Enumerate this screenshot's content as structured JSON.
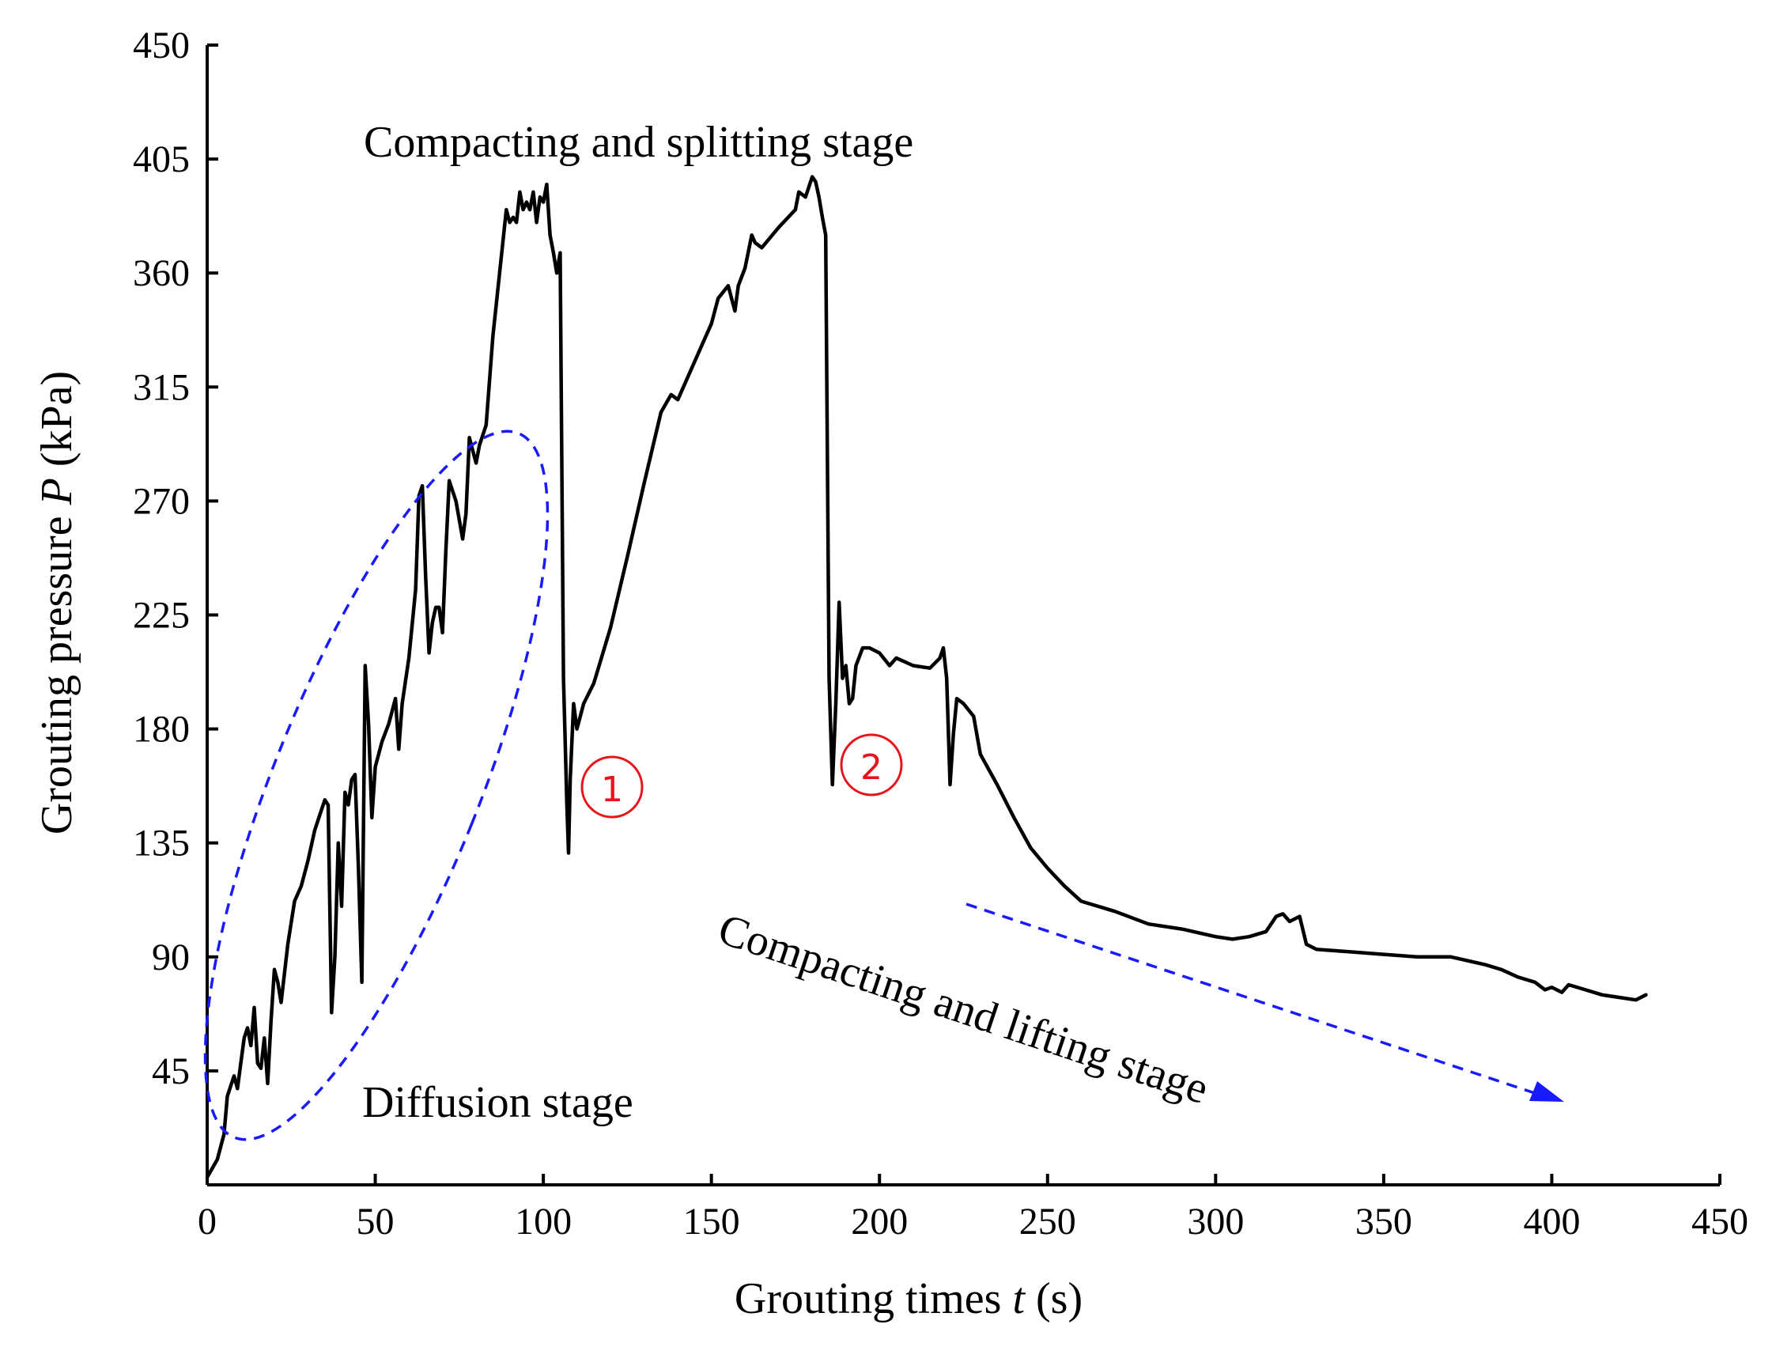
{
  "chart_data": {
    "type": "line",
    "xlabel": {
      "prefix": "Grouting times ",
      "var": "t",
      "suffix": " (s)"
    },
    "ylabel": {
      "prefix": "Grouting pressure ",
      "var": "P",
      "suffix": " (kPa)"
    },
    "xlim": [
      0,
      450
    ],
    "ylim": [
      0,
      450
    ],
    "xticks": [
      0,
      50,
      100,
      150,
      200,
      250,
      300,
      350,
      400,
      450
    ],
    "yticks": [
      45,
      90,
      135,
      180,
      225,
      270,
      315,
      360,
      405,
      450
    ],
    "grid": false,
    "colors": {
      "series": "#000000",
      "annotation": "#1a1aff",
      "marker": "#e8141b"
    },
    "series": [
      {
        "name": "Grouting pressure",
        "x": [
          0,
          3,
          5,
          6,
          8,
          9,
          10,
          11,
          12,
          13,
          14,
          15,
          16,
          17,
          18,
          19,
          20,
          21,
          22,
          24,
          26,
          28,
          30,
          32,
          34,
          35,
          36,
          37,
          38,
          39,
          40,
          41,
          42,
          43,
          44,
          45,
          46,
          47,
          48,
          49,
          50,
          52,
          54,
          56,
          57,
          58,
          60,
          62,
          63,
          64,
          65,
          66,
          67,
          68,
          69,
          70,
          71,
          72,
          74,
          76,
          77,
          78,
          79,
          80,
          81,
          83,
          85,
          87,
          89,
          90,
          91,
          92,
          93,
          94,
          95,
          96,
          97,
          98,
          99,
          100,
          101,
          102,
          103,
          104,
          105,
          106,
          107,
          107.5,
          108,
          109,
          110,
          111,
          112,
          115,
          120,
          125,
          130,
          135,
          138,
          140,
          145,
          150,
          152,
          155,
          157,
          158,
          160,
          162,
          163,
          165,
          170,
          175,
          176,
          178,
          180,
          181,
          182,
          183,
          184,
          185,
          186,
          187,
          188,
          189,
          190,
          191,
          192,
          193,
          195,
          197,
          200,
          203,
          205,
          210,
          215,
          218,
          219,
          220,
          221,
          222,
          223,
          225,
          228,
          230,
          235,
          240,
          245,
          250,
          255,
          260,
          270,
          280,
          290,
          300,
          305,
          310,
          315,
          318,
          320,
          322,
          325,
          327,
          330,
          340,
          350,
          360,
          370,
          380,
          385,
          390,
          395,
          398,
          400,
          403,
          405,
          410,
          415,
          420,
          425,
          428
        ],
        "y": [
          3,
          10,
          20,
          35,
          43,
          38,
          48,
          58,
          62,
          55,
          70,
          48,
          46,
          58,
          40,
          65,
          85,
          80,
          72,
          95,
          112,
          118,
          128,
          140,
          148,
          152,
          150,
          68,
          90,
          135,
          110,
          155,
          150,
          160,
          162,
          125,
          80,
          205,
          182,
          145,
          165,
          175,
          182,
          192,
          172,
          190,
          208,
          235,
          272,
          276,
          240,
          210,
          222,
          228,
          228,
          218,
          250,
          278,
          270,
          255,
          265,
          295,
          290,
          285,
          292,
          300,
          335,
          360,
          385,
          380,
          382,
          380,
          392,
          385,
          388,
          385,
          392,
          380,
          390,
          388,
          395,
          375,
          368,
          360,
          368,
          200,
          150,
          131,
          160,
          190,
          180,
          185,
          190,
          198,
          220,
          248,
          277,
          305,
          312,
          310,
          325,
          340,
          350,
          355,
          345,
          355,
          362,
          375,
          372,
          370,
          378,
          385,
          392,
          390,
          398,
          396,
          390,
          382,
          375,
          200,
          158,
          190,
          230,
          200,
          205,
          190,
          192,
          205,
          212,
          212,
          210,
          205,
          208,
          205,
          204,
          208,
          212,
          200,
          158,
          178,
          192,
          190,
          185,
          170,
          158,
          145,
          133,
          125,
          118,
          112,
          108,
          103,
          101,
          98,
          97,
          98,
          100,
          106,
          107,
          104,
          106,
          95,
          93,
          92,
          91,
          90,
          90,
          87,
          85,
          82,
          80,
          77,
          78,
          76,
          79,
          77,
          75,
          74,
          73,
          75
        ]
      }
    ],
    "annotations": {
      "diffusion": "Diffusion stage",
      "compacting_splitting": "Compacting and splitting stage",
      "compacting_lifting": "Compacting and lifting stage",
      "marker_1": "①",
      "marker_2": "②"
    }
  }
}
